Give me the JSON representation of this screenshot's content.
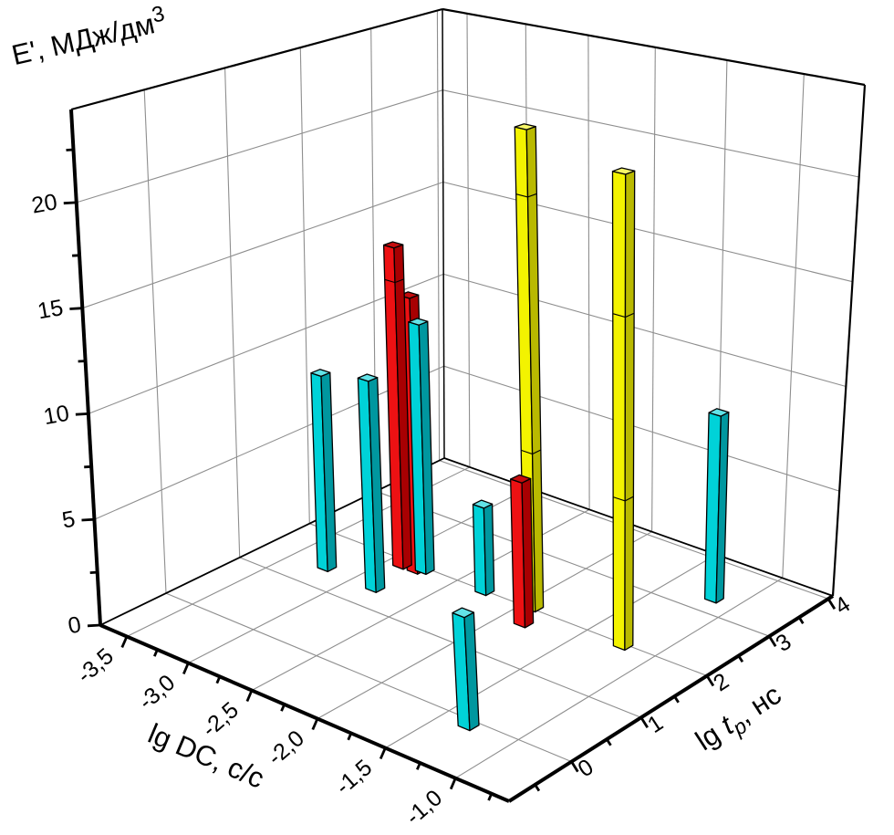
{
  "chart_data": {
    "type": "bar",
    "projection": "3d",
    "background": "#ffffff",
    "grid_color": "#8e8e8e",
    "axis_color": "#000000",
    "x_axis": {
      "title": "lg DC, с/с",
      "min": -3.72,
      "max": -0.63,
      "major_ticks": [
        -3.5,
        -3.0,
        -2.5,
        -2.0,
        -1.5,
        -1.0
      ],
      "minor_ticks": [
        -3.25,
        -2.75,
        -2.25,
        -1.75,
        -1.25,
        -0.75
      ],
      "tick_labels": [
        "-3,5",
        "-3,0",
        "-2,5",
        "-2,0",
        "-1,5",
        "-1,0"
      ]
    },
    "y_axis": {
      "title_parts": {
        "pre": "lg ",
        "var": "t",
        "sub": "p",
        "post": ", нс"
      },
      "min": -0.85,
      "max": 4.08,
      "major_ticks": [
        0,
        1,
        2,
        3,
        4
      ],
      "minor_ticks": [
        -0.5,
        0.5,
        1.5,
        2.5,
        3.5
      ],
      "tick_labels": [
        "0",
        "1",
        "2",
        "3",
        "4"
      ]
    },
    "z_axis": {
      "title_parts": {
        "text": "E', МДж/дм",
        "sup": "3"
      },
      "min": 0,
      "max": 24.4,
      "major_ticks": [
        0,
        5,
        10,
        15,
        20
      ],
      "minor_ticks": [
        2.5,
        7.5,
        12.5,
        17.5,
        22.5
      ],
      "tick_labels": [
        "0",
        "5",
        "10",
        "15",
        "20"
      ]
    },
    "colors": {
      "cyan": {
        "front": "#00d2d8",
        "side": "#00979f",
        "top": "#62e3e8"
      },
      "red": {
        "front": "#ed1113",
        "side": "#a80002",
        "top": "#c40c0e"
      },
      "yellow": {
        "front": "#f3f300",
        "side": "#b9b900",
        "top": "#f6f668"
      }
    },
    "bars": [
      {
        "name": "cyan-1",
        "color": "cyan",
        "lg_dc": -3.22,
        "lg_tp": 1.39,
        "value": 9.6,
        "segments": []
      },
      {
        "name": "red-2",
        "color": "red",
        "lg_dc": -2.78,
        "lg_tp": 1.91,
        "value": 13.5,
        "segments": []
      },
      {
        "name": "red-1",
        "color": "red",
        "lg_dc": -2.89,
        "lg_tp": 1.9,
        "value": 15.8,
        "segments": [
          14.1
        ]
      },
      {
        "name": "cyan-3",
        "color": "cyan",
        "lg_dc": -2.74,
        "lg_tp": 1.96,
        "value": 12.2,
        "segments": []
      },
      {
        "name": "cyan-2",
        "color": "cyan",
        "lg_dc": -2.81,
        "lg_tp": 1.36,
        "value": 10.2,
        "segments": []
      },
      {
        "name": "cyan-4",
        "color": "cyan",
        "lg_dc": -2.28,
        "lg_tp": 1.99,
        "value": 4.2,
        "segments": []
      },
      {
        "name": "yellow-1",
        "color": "yellow",
        "lg_dc": -1.92,
        "lg_tp": 2.03,
        "value": 22.9,
        "segments": [
          7.5,
          19.7
        ]
      },
      {
        "name": "cyan-6",
        "color": "cyan",
        "lg_dc": -1.16,
        "lg_tp": 3.29,
        "value": 8.9,
        "segments": []
      },
      {
        "name": "red-3",
        "color": "red",
        "lg_dc": -1.84,
        "lg_tp": 1.72,
        "value": 6.8,
        "segments": []
      },
      {
        "name": "yellow-2",
        "color": "yellow",
        "lg_dc": -1.22,
        "lg_tp": 1.97,
        "value": 22.0,
        "segments": [
          6.9,
          15.4
        ]
      },
      {
        "name": "cyan-5",
        "color": "cyan",
        "lg_dc": -1.31,
        "lg_tp": -0.09,
        "value": 5.0,
        "segments": []
      }
    ]
  }
}
